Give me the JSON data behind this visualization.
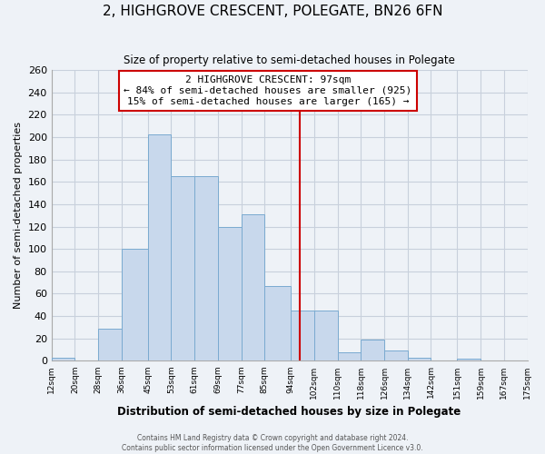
{
  "title": "2, HIGHGROVE CRESCENT, POLEGATE, BN26 6FN",
  "subtitle": "Size of property relative to semi-detached houses in Polegate",
  "xlabel": "Distribution of semi-detached houses by size in Polegate",
  "ylabel": "Number of semi-detached properties",
  "bin_edges": [
    12,
    20,
    28,
    36,
    45,
    53,
    61,
    69,
    77,
    85,
    94,
    102,
    110,
    118,
    126,
    134,
    142,
    151,
    159,
    167,
    175
  ],
  "bar_heights": [
    3,
    0,
    29,
    100,
    202,
    165,
    165,
    120,
    131,
    67,
    45,
    45,
    8,
    19,
    9,
    3,
    0,
    2,
    0,
    0
  ],
  "bar_color": "#c8d8ec",
  "bar_edge_color": "#7aaad0",
  "property_line_x": 97,
  "property_line_color": "#cc0000",
  "annotation_title": "2 HIGHGROVE CRESCENT: 97sqm",
  "annotation_line1": "← 84% of semi-detached houses are smaller (925)",
  "annotation_line2": "15% of semi-detached houses are larger (165) →",
  "annotation_box_color": "#ffffff",
  "annotation_box_edge_color": "#cc0000",
  "ylim": [
    0,
    260
  ],
  "yticks": [
    0,
    20,
    40,
    60,
    80,
    100,
    120,
    140,
    160,
    180,
    200,
    220,
    240,
    260
  ],
  "x_tick_labels": [
    "12sqm",
    "20sqm",
    "28sqm",
    "36sqm",
    "45sqm",
    "53sqm",
    "61sqm",
    "69sqm",
    "77sqm",
    "85sqm",
    "94sqm",
    "102sqm",
    "110sqm",
    "118sqm",
    "126sqm",
    "134sqm",
    "142sqm",
    "151sqm",
    "159sqm",
    "167sqm",
    "175sqm"
  ],
  "footer_line1": "Contains HM Land Registry data © Crown copyright and database right 2024.",
  "footer_line2": "Contains public sector information licensed under the Open Government Licence v3.0.",
  "bg_color": "#eef2f7",
  "plot_bg_color": "#eef2f7",
  "grid_color": "#c8d0dc"
}
